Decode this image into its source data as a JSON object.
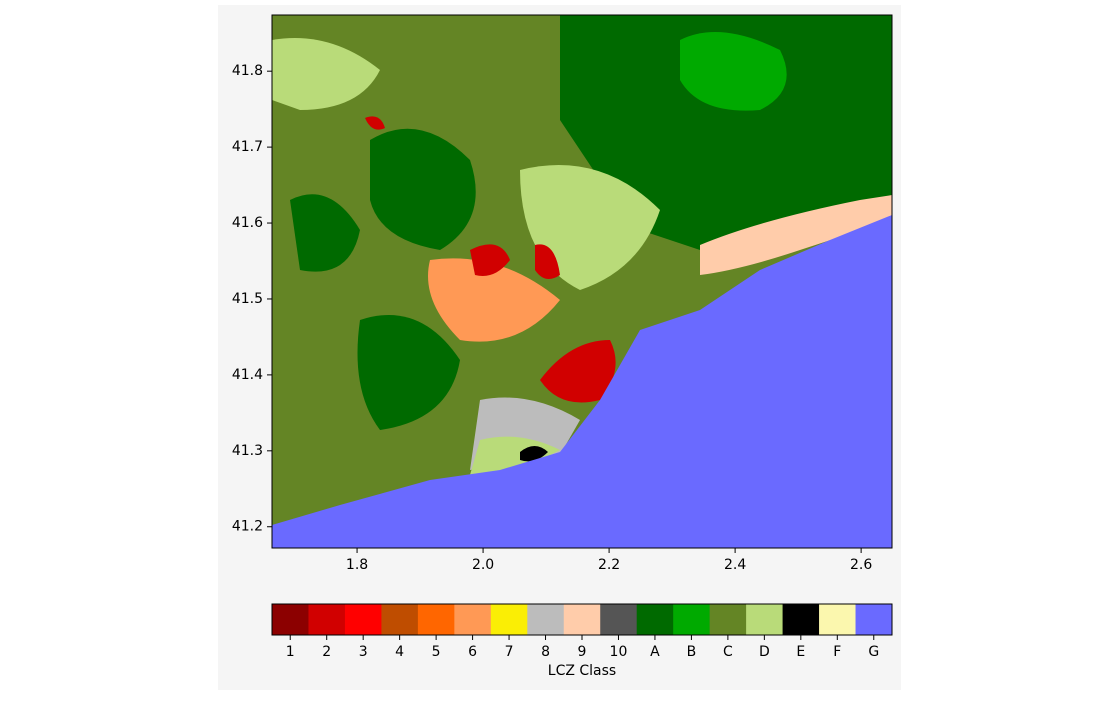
{
  "map": {
    "xlim": [
      1.665,
      2.649
    ],
    "ylim": [
      41.172,
      41.874
    ],
    "xticks": [
      {
        "value": 1.8,
        "label": "1.8"
      },
      {
        "value": 2.0,
        "label": "2.0"
      },
      {
        "value": 2.2,
        "label": "2.2"
      },
      {
        "value": 2.4,
        "label": "2.4"
      },
      {
        "value": 2.6,
        "label": "2.6"
      }
    ],
    "yticks": [
      {
        "value": 41.2,
        "label": "41.2"
      },
      {
        "value": 41.3,
        "label": "41.3"
      },
      {
        "value": 41.4,
        "label": "41.4"
      },
      {
        "value": 41.5,
        "label": "41.5"
      },
      {
        "value": 41.6,
        "label": "41.6"
      },
      {
        "value": 41.7,
        "label": "41.7"
      },
      {
        "value": 41.8,
        "label": "41.8"
      }
    ]
  },
  "colorbar": {
    "label": "LCZ Class",
    "classes": [
      "1",
      "2",
      "3",
      "4",
      "5",
      "6",
      "7",
      "8",
      "9",
      "10",
      "A",
      "B",
      "C",
      "D",
      "E",
      "F",
      "G"
    ],
    "colors": [
      "#8c0000",
      "#d10000",
      "#ff0000",
      "#bf4d00",
      "#ff6600",
      "#ff9955",
      "#faee05",
      "#bcbcbc",
      "#ffccaa",
      "#555555",
      "#006a00",
      "#00aa00",
      "#648525",
      "#b9db79",
      "#000000",
      "#fbf7ae",
      "#6a6aff"
    ]
  }
}
